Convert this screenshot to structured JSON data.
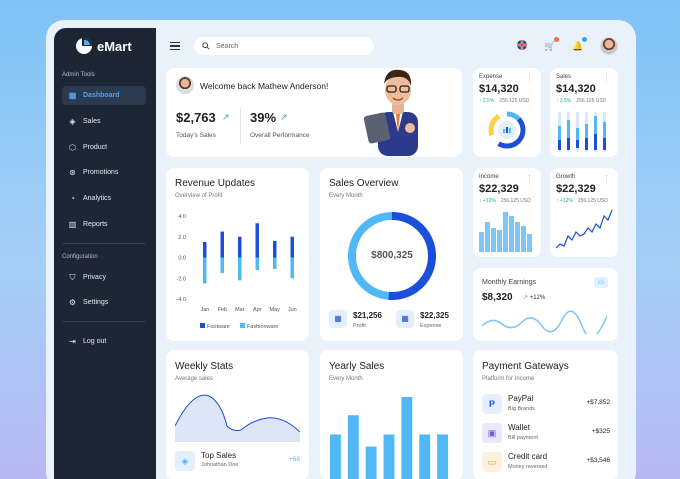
{
  "brand": {
    "name": "eMart"
  },
  "sidebar": {
    "section1_label": "Admin Tools",
    "items": [
      {
        "label": "Dashboard",
        "icon": "dashboard-icon"
      },
      {
        "label": "Sales",
        "icon": "tag-icon"
      },
      {
        "label": "Product",
        "icon": "box-icon"
      },
      {
        "label": "Promotions",
        "icon": "promotion-icon"
      },
      {
        "label": "Analytics",
        "icon": "analytics-icon"
      },
      {
        "label": "Reports",
        "icon": "reports-icon"
      }
    ],
    "section2_label": "Configuration",
    "config_items": [
      {
        "label": "Privacy",
        "icon": "shield-icon"
      },
      {
        "label": "Settings",
        "icon": "gear-icon"
      }
    ],
    "logout_label": "Log out"
  },
  "search": {
    "placeholder": "Search"
  },
  "welcome": {
    "text": "Welcome back Mathew Anderson!",
    "sales_value": "$2,763",
    "sales_label": "Today's Sales",
    "perf_value": "39%",
    "perf_label": "Overall Performance"
  },
  "expense": {
    "title": "Expense",
    "value": "$14,320",
    "change": "2.5%",
    "sub": "256.125 USD"
  },
  "sales_card": {
    "title": "Sales",
    "value": "$14,320",
    "change": "3.5%",
    "sub": "256.125 USD"
  },
  "income": {
    "title": "Income",
    "value": "$22,329",
    "change": "+12%",
    "sub": "256.125 USD"
  },
  "growth": {
    "title": "Growth",
    "value": "$22,329",
    "change": "+12%",
    "sub": "256.125 USD"
  },
  "revenue": {
    "title": "Revenue Updates",
    "subtitle": "Overview of Profit",
    "legend1": "Footware",
    "legend2": "Fashionware"
  },
  "sales_overview": {
    "title": "Sales Overview",
    "subtitle": "Every Month",
    "total": "$800,325",
    "profit_value": "$21,256",
    "profit_label": "Profit",
    "expense_value": "$22,325",
    "expense_label": "Expense"
  },
  "monthly": {
    "title": "Monthly Earnings",
    "value": "$8,320",
    "change": "+12%"
  },
  "weekly": {
    "title": "Weekly Stats",
    "subtitle": "Average sales",
    "item_title": "Top Sales",
    "item_sub": "Johnathan Doe",
    "item_value": "+68"
  },
  "yearly": {
    "title": "Yearly Sales",
    "subtitle": "Every Month"
  },
  "payments": {
    "title": "Payment Gateways",
    "subtitle": "Platform for Income",
    "items": [
      {
        "name": "PayPal",
        "sub": "Big Brands",
        "amount": "+$7,852"
      },
      {
        "name": "Wallet",
        "sub": "Bill payment",
        "amount": "+$325"
      },
      {
        "name": "Credit card",
        "sub": "Money reversed",
        "amount": "+$3,546"
      }
    ]
  },
  "colors": {
    "primary": "#1d4ed8",
    "accent": "#4fb8f5",
    "sidebar": "#1c2634"
  },
  "chart_data": [
    {
      "type": "bar",
      "title": "Revenue Updates",
      "subtitle": "Overview of Profit",
      "categories": [
        "Jan",
        "Feb",
        "Mar",
        "Apr",
        "May",
        "Jun"
      ],
      "yticks": [
        "4.0",
        "2.0",
        "0.0",
        "-2.0",
        "-4.0"
      ],
      "ylim": [
        -4,
        4
      ],
      "series": [
        {
          "name": "Footware",
          "values": [
            1.5,
            2.5,
            2.0,
            3.3,
            1.6,
            2.0
          ]
        },
        {
          "name": "Fashionware",
          "values": [
            -2.5,
            -1.5,
            -2.2,
            -1.2,
            -1.1,
            -2.0
          ]
        }
      ]
    },
    {
      "type": "pie",
      "title": "Sales Overview",
      "series": [
        {
          "name": "Profit",
          "values": [
            21256
          ]
        },
        {
          "name": "Expense",
          "values": [
            22325
          ]
        }
      ]
    },
    {
      "type": "bar",
      "title": "Yearly Sales",
      "values": [
        45,
        64,
        33,
        45,
        82,
        45,
        45
      ]
    }
  ]
}
